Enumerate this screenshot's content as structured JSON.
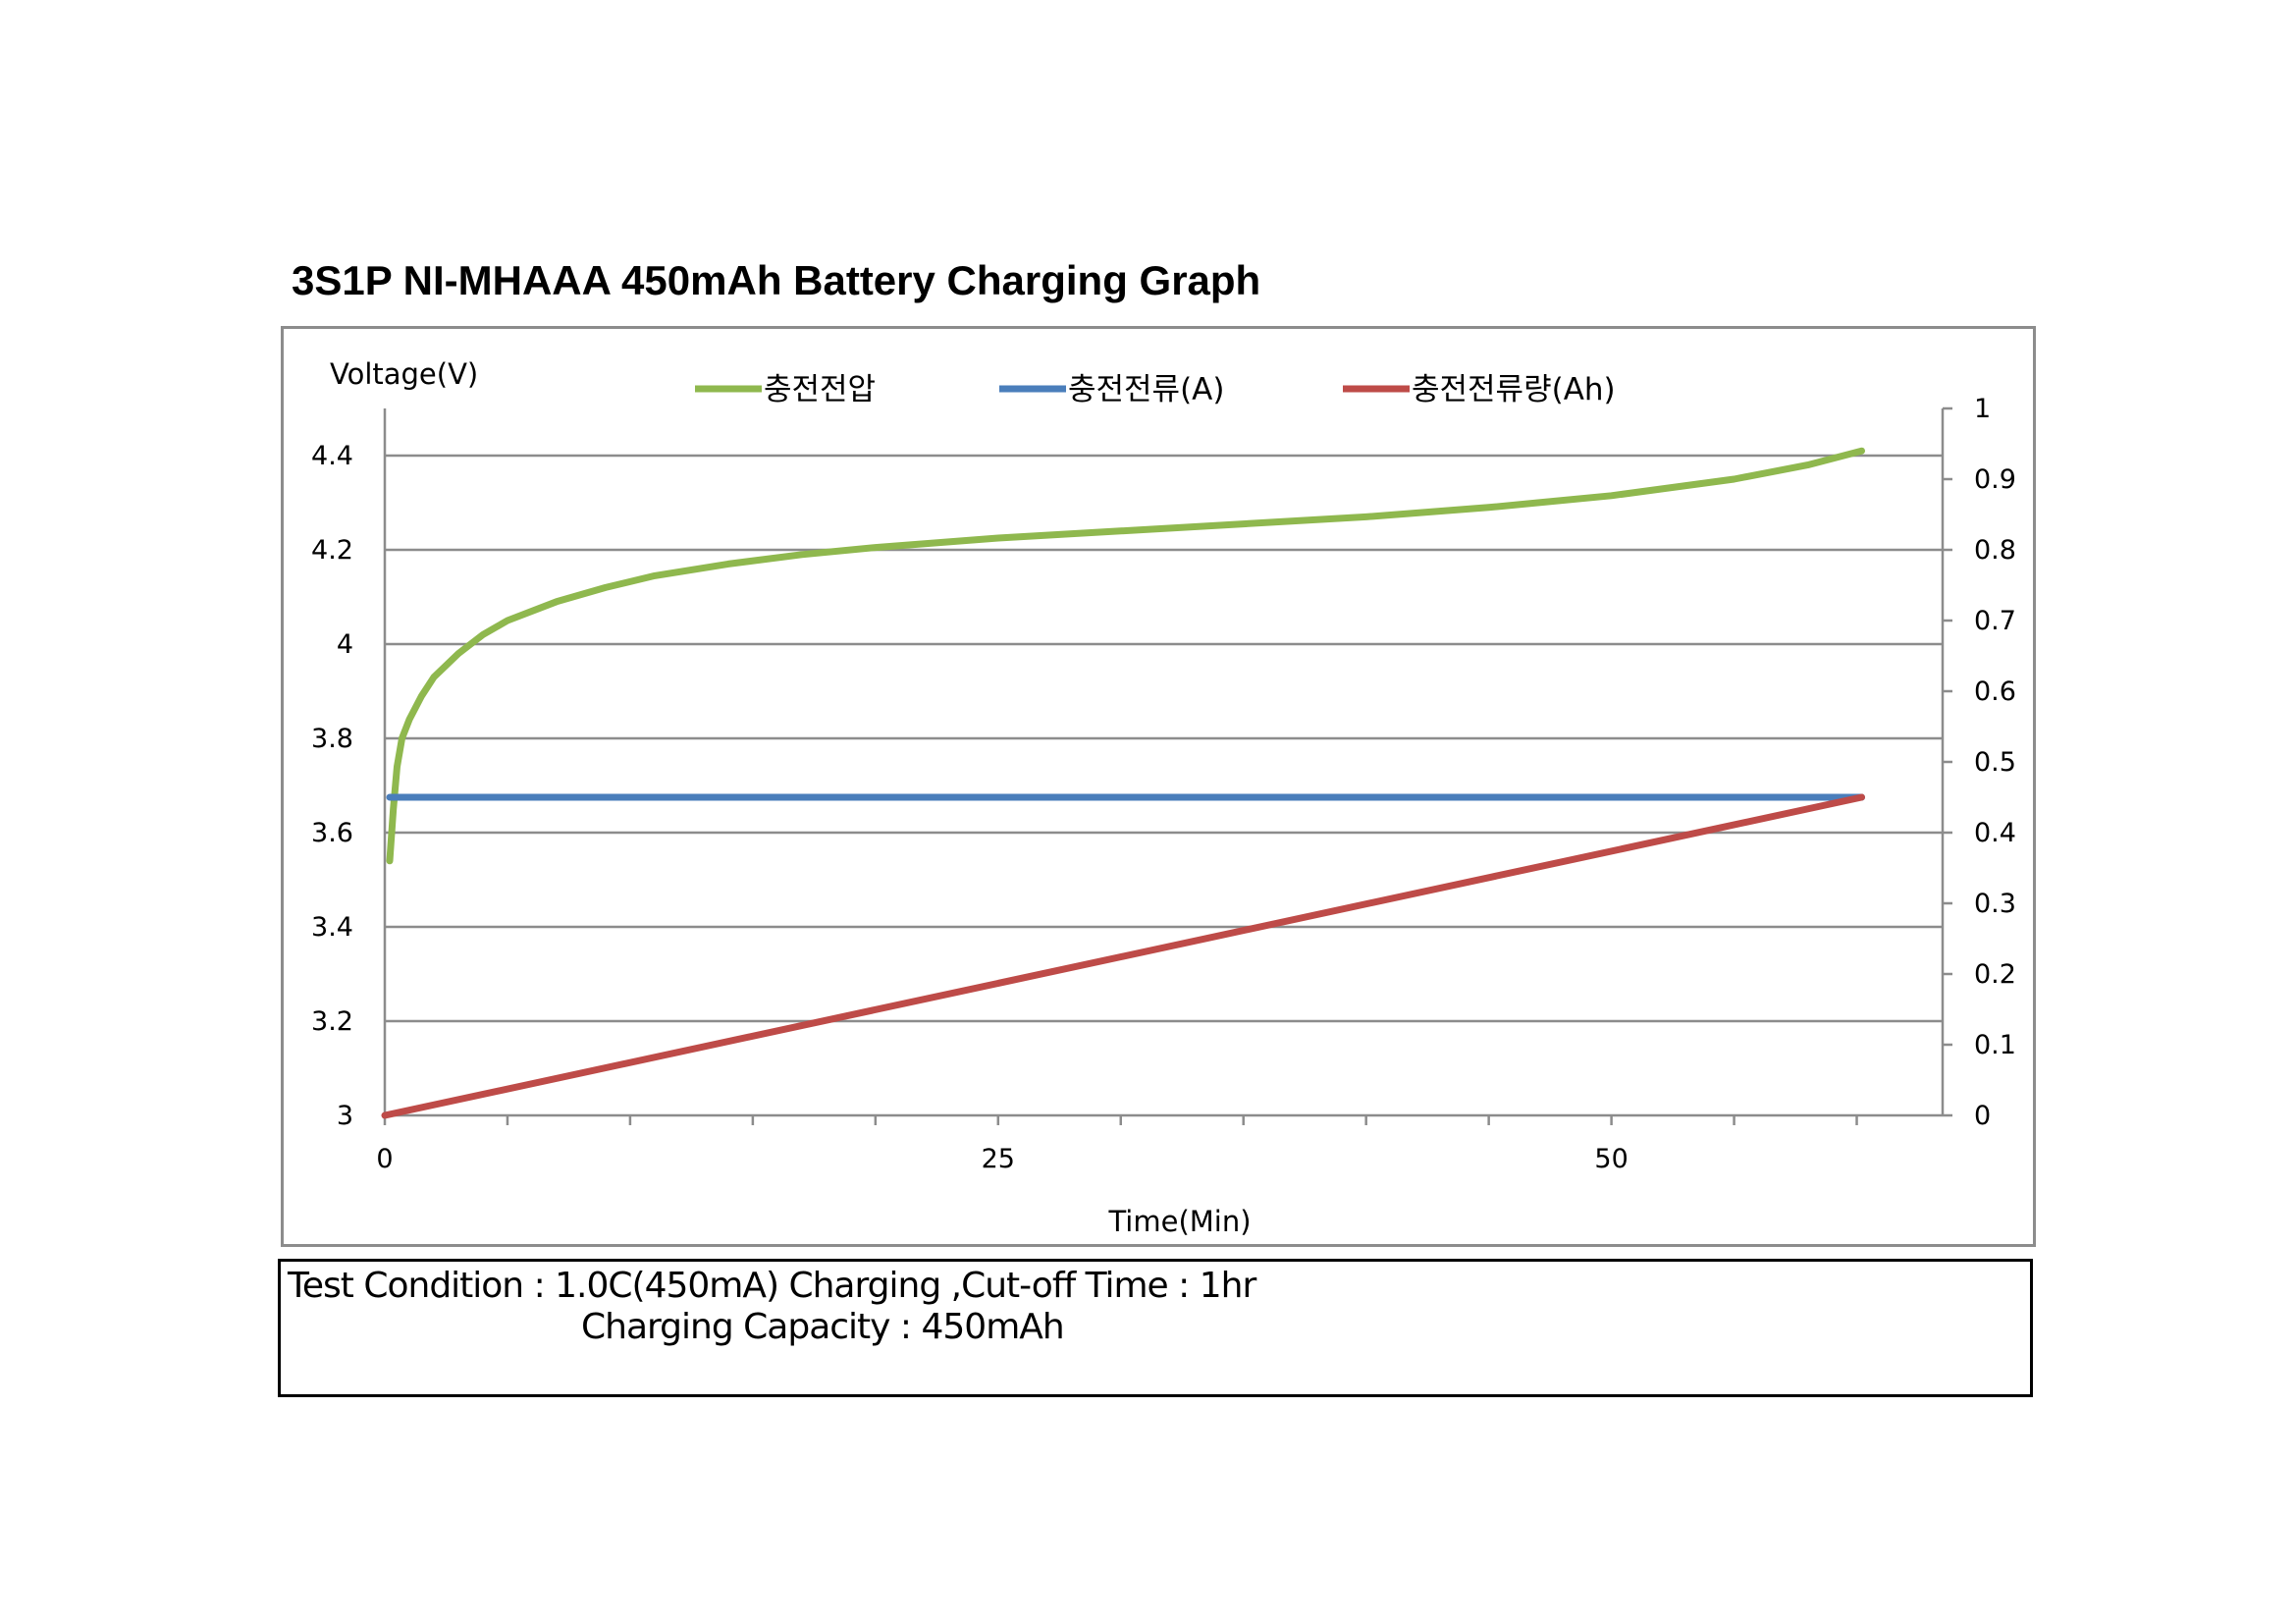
{
  "title": "3S1P NI-MHAAA 450mAh Battery Charging Graph",
  "note": {
    "line1": "Test Condition :  1.0C(450mA) Charging ,Cut-off Time : 1hr",
    "line2": "Charging Capacity : 450mAh"
  },
  "chart_data": {
    "type": "line",
    "title": "3S1P NI-MHAAA 450mAh Battery Charging Graph",
    "xlabel": "Time(Min)",
    "ylabel": "Voltage(V)",
    "xlim": [
      0,
      63.5
    ],
    "ylim": [
      3,
      4.5
    ],
    "y2lim": [
      0,
      1
    ],
    "x_ticks": [
      0,
      25,
      50
    ],
    "x_minor_tick_step": 5,
    "y_ticks": [
      3,
      3.2,
      3.4,
      3.6,
      3.8,
      4,
      4.2,
      4.4
    ],
    "y_tick_labels": [
      "3",
      "3.2",
      "3.4",
      "3.6",
      "3.8",
      "4",
      "4.2",
      "4.4"
    ],
    "y2_ticks": [
      0,
      0.1,
      0.2,
      0.3,
      0.4,
      0.5,
      0.6,
      0.7,
      0.8,
      0.9,
      1
    ],
    "y2_tick_labels": [
      "0",
      "0.1",
      "0.2",
      "0.3",
      "0.4",
      "0.5",
      "0.6",
      "0.7",
      "0.8",
      "0.9",
      "1"
    ],
    "grid": true,
    "legend_position": "top",
    "series": [
      {
        "name": "충전전압",
        "axis": "left",
        "color": "#8fb84e",
        "x": [
          0.2,
          0.35,
          0.5,
          0.7,
          1,
          1.5,
          2,
          3,
          4,
          5,
          7,
          9,
          11,
          14,
          17,
          20,
          25,
          30,
          35,
          40,
          45,
          50,
          55,
          58,
          60.2
        ],
        "y": [
          3.54,
          3.65,
          3.74,
          3.8,
          3.84,
          3.89,
          3.93,
          3.98,
          4.02,
          4.05,
          4.09,
          4.12,
          4.145,
          4.17,
          4.19,
          4.205,
          4.225,
          4.24,
          4.255,
          4.27,
          4.29,
          4.315,
          4.35,
          4.38,
          4.41
        ]
      },
      {
        "name": "충전전류(A)",
        "axis": "right",
        "color": "#4a7ebb",
        "x": [
          0.2,
          60.2
        ],
        "y": [
          0.45,
          0.45
        ]
      },
      {
        "name": "충전전류량(Ah)",
        "axis": "right",
        "color": "#be4b48",
        "x": [
          0,
          60.2
        ],
        "y": [
          0,
          0.45
        ]
      }
    ]
  }
}
